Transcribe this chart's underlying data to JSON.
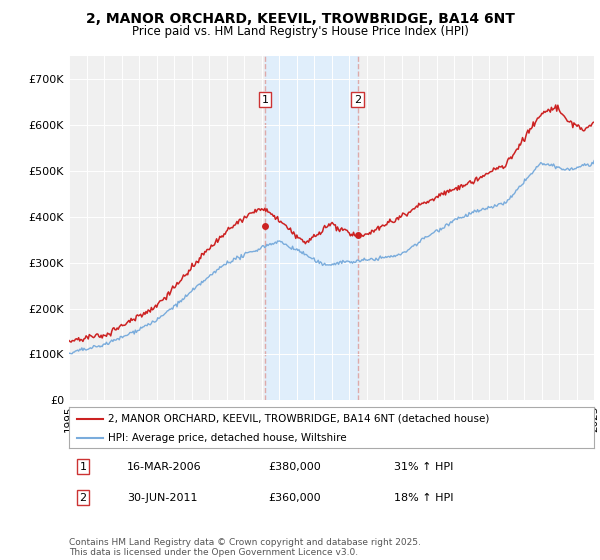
{
  "title_line1": "2, MANOR ORCHARD, KEEVIL, TROWBRIDGE, BA14 6NT",
  "title_line2": "Price paid vs. HM Land Registry's House Price Index (HPI)",
  "legend_label_red": "2, MANOR ORCHARD, KEEVIL, TROWBRIDGE, BA14 6NT (detached house)",
  "legend_label_blue": "HPI: Average price, detached house, Wiltshire",
  "transaction1_date": "16-MAR-2006",
  "transaction1_price": "£380,000",
  "transaction1_hpi": "31% ↑ HPI",
  "transaction2_date": "30-JUN-2011",
  "transaction2_price": "£360,000",
  "transaction2_hpi": "18% ↑ HPI",
  "footnote": "Contains HM Land Registry data © Crown copyright and database right 2025.\nThis data is licensed under the Open Government Licence v3.0.",
  "background_color": "#ffffff",
  "plot_bg_color": "#f0f0f0",
  "grid_color": "#ffffff",
  "red_color": "#cc2222",
  "blue_color": "#7aacdc",
  "shade_color": "#ddeeff",
  "vline_color": "#ddaaaa",
  "ylim": [
    0,
    750000
  ],
  "yticks": [
    0,
    100000,
    200000,
    300000,
    400000,
    500000,
    600000,
    700000
  ],
  "ytick_labels": [
    "£0",
    "£100K",
    "£200K",
    "£300K",
    "£400K",
    "£500K",
    "£600K",
    "£700K"
  ],
  "year_start": 1995,
  "year_end": 2025,
  "transaction1_year": 2006.2,
  "transaction2_year": 2011.5,
  "transaction1_price_val": 380000,
  "transaction2_price_val": 360000
}
